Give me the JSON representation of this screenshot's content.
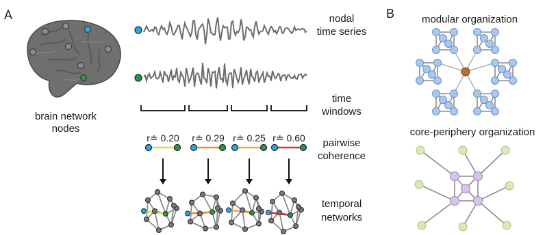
{
  "panel_a": {
    "letter": "A",
    "brain_label_line1": "brain network",
    "brain_label_line2": "nodes",
    "time_series_line1": "nodal",
    "time_series_line2": "time series",
    "time_windows_line1": "time",
    "time_windows_line2": "windows",
    "coherence_line1": "pairwise",
    "coherence_line2": "coherence",
    "temporal_line1": "temporal",
    "temporal_line2": "networks",
    "windows": [
      {
        "r": "r≐ 0.20",
        "edge_color": "#d7e03a"
      },
      {
        "r": "r≐ 0.29",
        "edge_color": "#f08a2a"
      },
      {
        "r": "r≐ 0.25",
        "edge_color": "#f4a640"
      },
      {
        "r": "r≐ 0.60",
        "edge_color": "#e03030"
      }
    ]
  },
  "panel_b": {
    "letter": "B",
    "modular_title": "modular organization",
    "core_title": "core-periphery organization"
  },
  "colors": {
    "node_blue": "#2aa6e0",
    "node_green": "#1f9a4a",
    "modular_node": "#a7c8ef",
    "hub_node": "#b0743c",
    "core_node": "#d6c4e8",
    "periphery_node": "#d8eab5",
    "edge_gray": "#8a8a8a"
  }
}
